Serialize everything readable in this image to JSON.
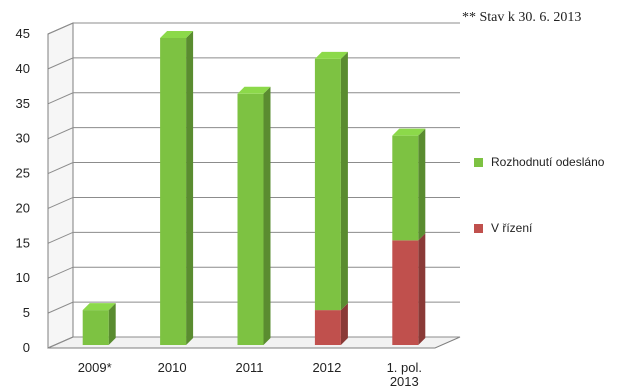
{
  "chart_data": {
    "type": "bar",
    "stacked": true,
    "style": "3d",
    "categories": [
      "2009*",
      "2010",
      "2011",
      "2012",
      "1. pol.|2013"
    ],
    "series": [
      {
        "name": "V řízení",
        "values": [
          0,
          0,
          0,
          5,
          15
        ],
        "color": "#c0504d"
      },
      {
        "name": "Rozhodnutí odesláno",
        "values": [
          5,
          44,
          36,
          36,
          15
        ],
        "color": "#7dc242"
      }
    ],
    "ylim": [
      0,
      45
    ],
    "yticks": [
      0,
      5,
      10,
      15,
      20,
      25,
      30,
      35,
      40,
      45
    ],
    "grid": true,
    "legend": "right"
  },
  "note": "** Stav k 30. 6. 2013",
  "legend": [
    {
      "label": "Rozhodnutí odesláno",
      "color": "#7dc242"
    },
    {
      "label": "V řízení",
      "color": "#c0504d"
    }
  ]
}
